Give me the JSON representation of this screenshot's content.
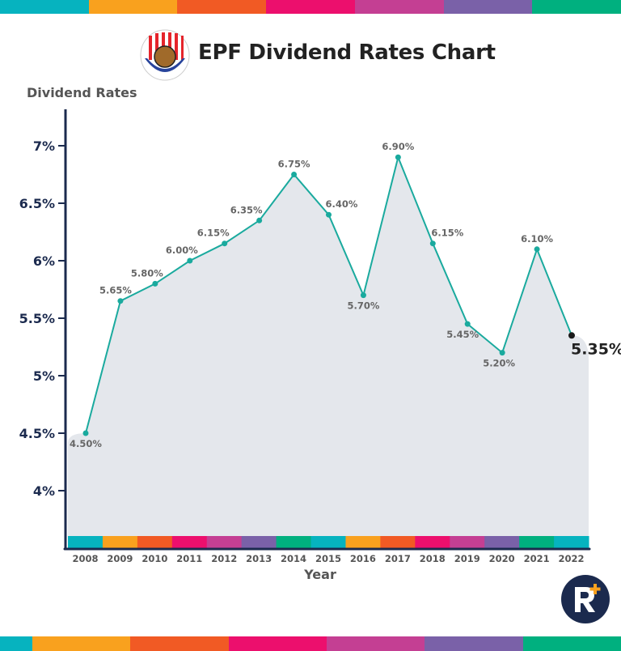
{
  "title": "EPF Dividend Rates Chart",
  "logo_text": "KWSP",
  "brand_logo_text": "R+",
  "stripe_colors": [
    "#06b3bf",
    "#f9a11e",
    "#f15a24",
    "#ec0f6d",
    "#c43f93",
    "#7a61a8",
    "#00b07f"
  ],
  "chart_data": {
    "type": "area",
    "title": "EPF Dividend Rates Chart",
    "xlabel": "Year",
    "ylabel": "Dividend Rates",
    "categories": [
      "2008",
      "2009",
      "2010",
      "2011",
      "2012",
      "2013",
      "2014",
      "2015",
      "2016",
      "2017",
      "2018",
      "2019",
      "2020",
      "2021",
      "2022"
    ],
    "values": [
      4.5,
      5.65,
      5.8,
      6.0,
      6.15,
      6.35,
      6.75,
      6.4,
      5.7,
      6.9,
      6.15,
      5.45,
      5.2,
      6.1,
      5.35
    ],
    "data_labels": [
      "4.50%",
      "5.65%",
      "5.80%",
      "6.00%",
      "6.15%",
      "6.35%",
      "6.75%",
      "6.40%",
      "5.70%",
      "6.90%",
      "6.15%",
      "5.45%",
      "5.20%",
      "6.10%",
      "5.35%"
    ],
    "yticks": [
      "4%",
      "4.5%",
      "5%",
      "5.5%",
      "6%",
      "6.5%",
      "7%"
    ],
    "ytick_values": [
      4,
      4.5,
      5,
      5.5,
      6,
      6.5,
      7
    ],
    "ylim": [
      3.5,
      7.3
    ],
    "grid": false,
    "line_color": "#1aaa9e",
    "fill_color": "#e4e7ec",
    "axis_color": "#1b2a4e",
    "highlight_color": "#1a1a1a"
  }
}
